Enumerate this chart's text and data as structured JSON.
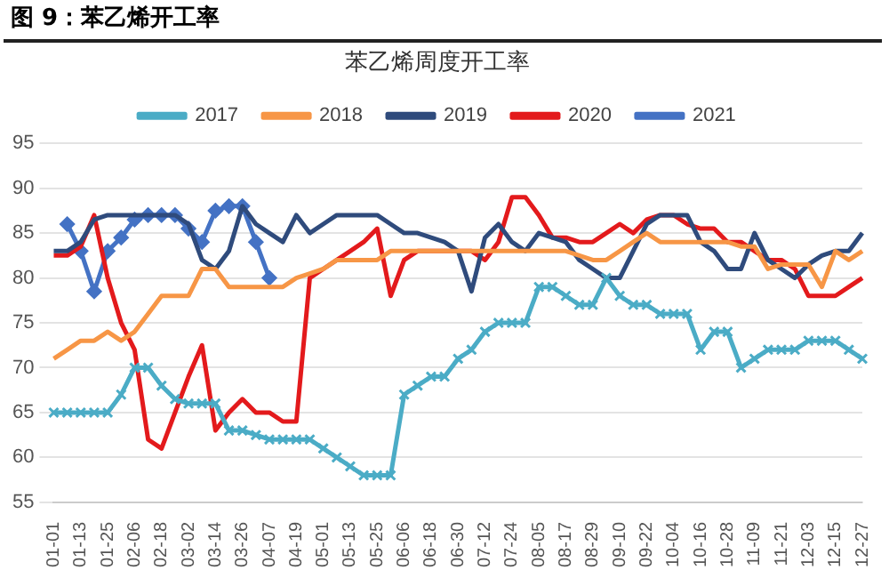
{
  "chart_data": {
    "type": "line",
    "title": "图 9：苯乙烯开工率",
    "subtitle": "苯乙烯周度开工率",
    "categories": [
      "01-01",
      null,
      "01-13",
      null,
      "01-25",
      null,
      "02-06",
      null,
      "02-18",
      null,
      "03-02",
      null,
      "03-14",
      null,
      "03-26",
      null,
      "04-07",
      null,
      "04-19",
      null,
      "05-01",
      null,
      "05-13",
      null,
      "05-25",
      null,
      "06-06",
      null,
      "06-18",
      null,
      "06-30",
      null,
      "07-12",
      null,
      "07-24",
      null,
      "08-05",
      null,
      "08-17",
      null,
      "08-29",
      null,
      "09-10",
      null,
      "09-22",
      null,
      "10-04",
      null,
      "10-16",
      null,
      "10-28",
      null,
      "11-09",
      null,
      "11-21",
      null,
      "12-03",
      null,
      "12-15",
      null,
      "12-27"
    ],
    "series": [
      {
        "name": "2017",
        "color": "#4bacc6",
        "marker": "cross",
        "values": [
          65,
          65,
          65,
          65,
          65,
          67,
          70,
          70,
          68,
          66.5,
          66,
          66,
          66,
          63,
          63,
          62.5,
          62,
          62,
          62,
          62,
          61,
          60,
          59,
          58,
          58,
          58,
          67,
          68,
          69,
          69,
          71,
          72,
          74,
          75,
          75,
          75,
          79,
          79,
          78,
          77,
          77,
          80,
          78,
          77,
          77,
          76,
          76,
          76,
          72,
          74,
          74,
          70,
          71,
          72,
          72,
          72,
          73,
          73,
          73,
          72,
          71
        ]
      },
      {
        "name": "2018",
        "color": "#f79646",
        "marker": "none",
        "values": [
          71,
          72,
          73,
          73,
          74,
          73,
          74,
          76,
          78,
          78,
          78,
          81,
          81,
          79,
          79,
          79,
          79,
          79,
          80,
          80.5,
          81,
          82,
          82,
          82,
          82,
          83,
          83,
          83,
          83,
          83,
          83,
          83,
          83,
          83,
          83,
          83,
          83,
          83,
          83,
          82.5,
          82,
          82,
          83,
          84,
          85,
          84,
          84,
          84,
          84,
          84,
          84,
          83.5,
          83.5,
          81,
          81.5,
          81.5,
          81.5,
          79,
          83,
          82,
          83
        ]
      },
      {
        "name": "2019",
        "color": "#2f4b7c",
        "marker": "none",
        "values": [
          83,
          83,
          84,
          86.5,
          87,
          87,
          87,
          87,
          87,
          87,
          86,
          82,
          81,
          83,
          88,
          86,
          85,
          84,
          87,
          85,
          86,
          87,
          87,
          87,
          87,
          86,
          85,
          85,
          84.5,
          84,
          83,
          78.5,
          84.5,
          86,
          84,
          83,
          85,
          84.5,
          84,
          82,
          81,
          80,
          80,
          83,
          86,
          87,
          87,
          87,
          84,
          83,
          81,
          81,
          85,
          82,
          81,
          80,
          81.5,
          82.5,
          83,
          83,
          85
        ]
      },
      {
        "name": "2020",
        "color": "#e31a1c",
        "marker": "none",
        "values": [
          82.5,
          82.5,
          83.5,
          87,
          80,
          75,
          72,
          62,
          61,
          65,
          69,
          72.5,
          63,
          65,
          66.5,
          65,
          65,
          64,
          64,
          80,
          81,
          82,
          83,
          84,
          85.5,
          78,
          82,
          83,
          83,
          83,
          83,
          83,
          82,
          84,
          89,
          89,
          87,
          84.5,
          84.5,
          84,
          84,
          85,
          86,
          85,
          86.5,
          87,
          87,
          86,
          85.5,
          85.5,
          84,
          84,
          83,
          82,
          82,
          81,
          78,
          78,
          78,
          79,
          80
        ]
      },
      {
        "name": "2021",
        "color": "#4472c4",
        "marker": "diamond",
        "values": [
          null,
          86,
          83,
          78.5,
          83,
          84.5,
          86.5,
          87,
          87,
          87,
          85.5,
          84,
          87.5,
          88,
          88,
          84,
          80,
          null,
          null,
          null,
          null,
          null,
          null,
          null,
          null,
          null,
          null,
          null,
          null,
          null,
          null,
          null,
          null,
          null,
          null,
          null,
          null,
          null,
          null,
          null,
          null,
          null,
          null,
          null,
          null,
          null,
          null,
          null,
          null,
          null,
          null,
          null,
          null,
          null,
          null,
          null,
          null,
          null,
          null,
          null,
          null
        ]
      }
    ],
    "ylim": [
      55,
      95
    ],
    "yticks": [
      55,
      60,
      65,
      70,
      75,
      80,
      85,
      90,
      95
    ],
    "grid": "y",
    "legend": "top",
    "line_style": "solid"
  }
}
